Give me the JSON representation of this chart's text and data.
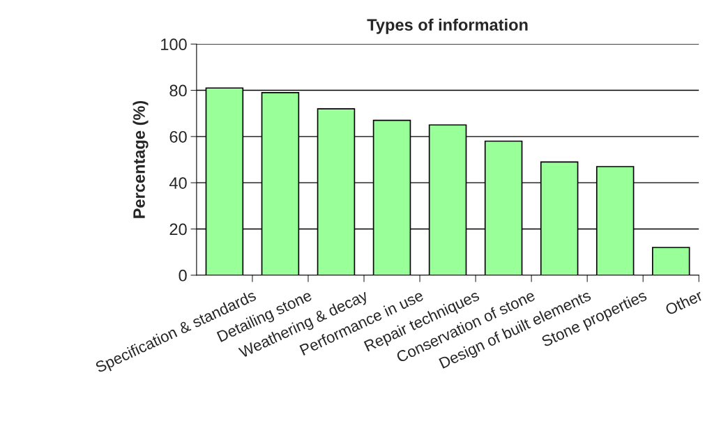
{
  "chart_data": {
    "type": "bar",
    "title": "Types of information",
    "ylabel": "Percentage (%)",
    "categories": [
      "Specification & standards",
      "Detailing stone",
      "Weathering & decay",
      "Performance in use",
      "Repair techniques",
      "Conservation of stone",
      "Design of built elements",
      "Stone properties",
      "Other"
    ],
    "values": [
      81,
      79,
      72,
      67,
      65,
      58,
      49,
      47,
      12
    ],
    "color": "#99ff99",
    "ylim": [
      0,
      100
    ],
    "yticks": [
      0,
      20,
      40,
      60,
      80,
      100
    ],
    "grid": "y"
  }
}
